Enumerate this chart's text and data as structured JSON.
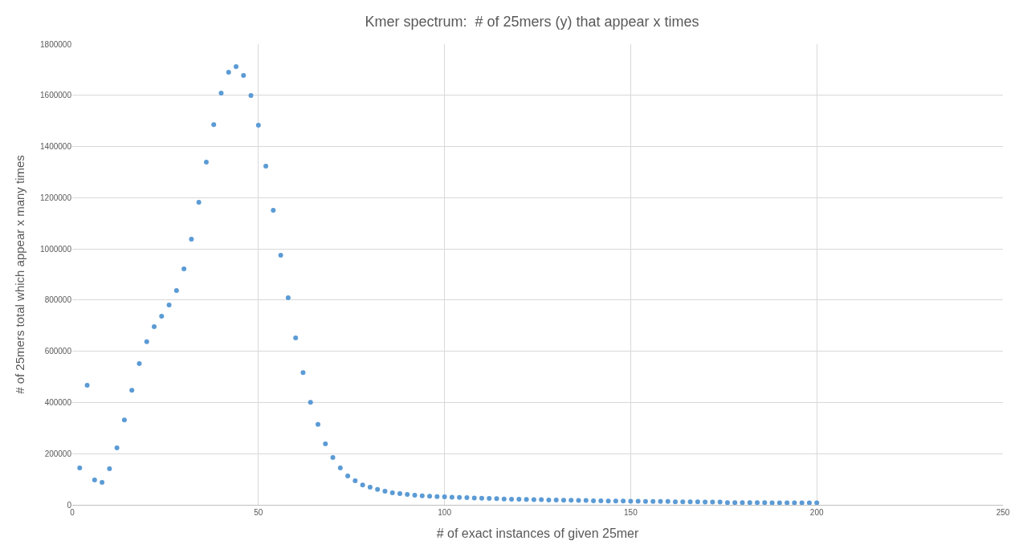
{
  "chart_data": {
    "type": "scatter",
    "title": "Kmer spectrum:  # of 25mers (y) that appear x times",
    "xlabel": "# of exact instances of given 25mer",
    "ylabel": "# of 25mers total which appear x many times",
    "x": [
      2,
      4,
      6,
      8,
      10,
      12,
      14,
      16,
      18,
      20,
      22,
      24,
      26,
      28,
      30,
      32,
      34,
      36,
      38,
      40,
      42,
      44,
      46,
      48,
      50,
      52,
      54,
      56,
      58,
      60,
      62,
      64,
      66,
      68,
      70,
      72,
      74,
      76,
      78,
      80,
      82,
      84,
      86,
      88,
      90,
      92,
      94,
      96,
      98,
      100,
      102,
      104,
      106,
      108,
      110,
      112,
      114,
      116,
      118,
      120,
      122,
      124,
      126,
      128,
      130,
      132,
      134,
      136,
      138,
      140,
      142,
      144,
      146,
      148,
      150,
      152,
      154,
      156,
      158,
      160,
      162,
      164,
      166,
      168,
      170,
      172,
      174,
      176,
      178,
      180,
      182,
      184,
      186,
      188,
      190,
      192,
      194,
      196,
      198,
      200
    ],
    "series": [
      {
        "color": "#5b9bd5",
        "values": [
          144000,
          467000,
          97000,
          88000,
          141000,
          223000,
          332000,
          448000,
          552000,
          637000,
          696000,
          737000,
          781000,
          837000,
          922000,
          1038000,
          1182000,
          1339000,
          1486000,
          1609000,
          1690000,
          1712000,
          1678000,
          1599000,
          1483000,
          1323000,
          1151000,
          975000,
          809000,
          652000,
          517000,
          401000,
          314000,
          238000,
          185000,
          144000,
          113000,
          94000,
          78000,
          69000,
          60000,
          53000,
          47000,
          44000,
          41000,
          38000,
          35000,
          34000,
          32000,
          31000,
          30000,
          29000,
          28000,
          27000,
          26000,
          25000,
          24000,
          23000,
          22000,
          22000,
          21000,
          20000,
          20000,
          19000,
          19000,
          18000,
          18000,
          17000,
          17000,
          16000,
          16000,
          15000,
          15000,
          15000,
          14000,
          14000,
          13000,
          13000,
          13000,
          13000,
          12000,
          12000,
          12000,
          12000,
          11000,
          11000,
          11000,
          9000,
          9000,
          9000,
          9000,
          9000,
          9000,
          8000,
          8000,
          8000,
          8000,
          8000,
          8000,
          8000
        ]
      }
    ],
    "xlim": [
      0,
      250
    ],
    "xticks": [
      0,
      50,
      100,
      150,
      200,
      250
    ],
    "ylim": [
      0,
      1800000
    ],
    "yticks": [
      0,
      200000,
      400000,
      600000,
      800000,
      1000000,
      1200000,
      1400000,
      1600000,
      1800000
    ],
    "grid": true,
    "marker": "circle"
  }
}
